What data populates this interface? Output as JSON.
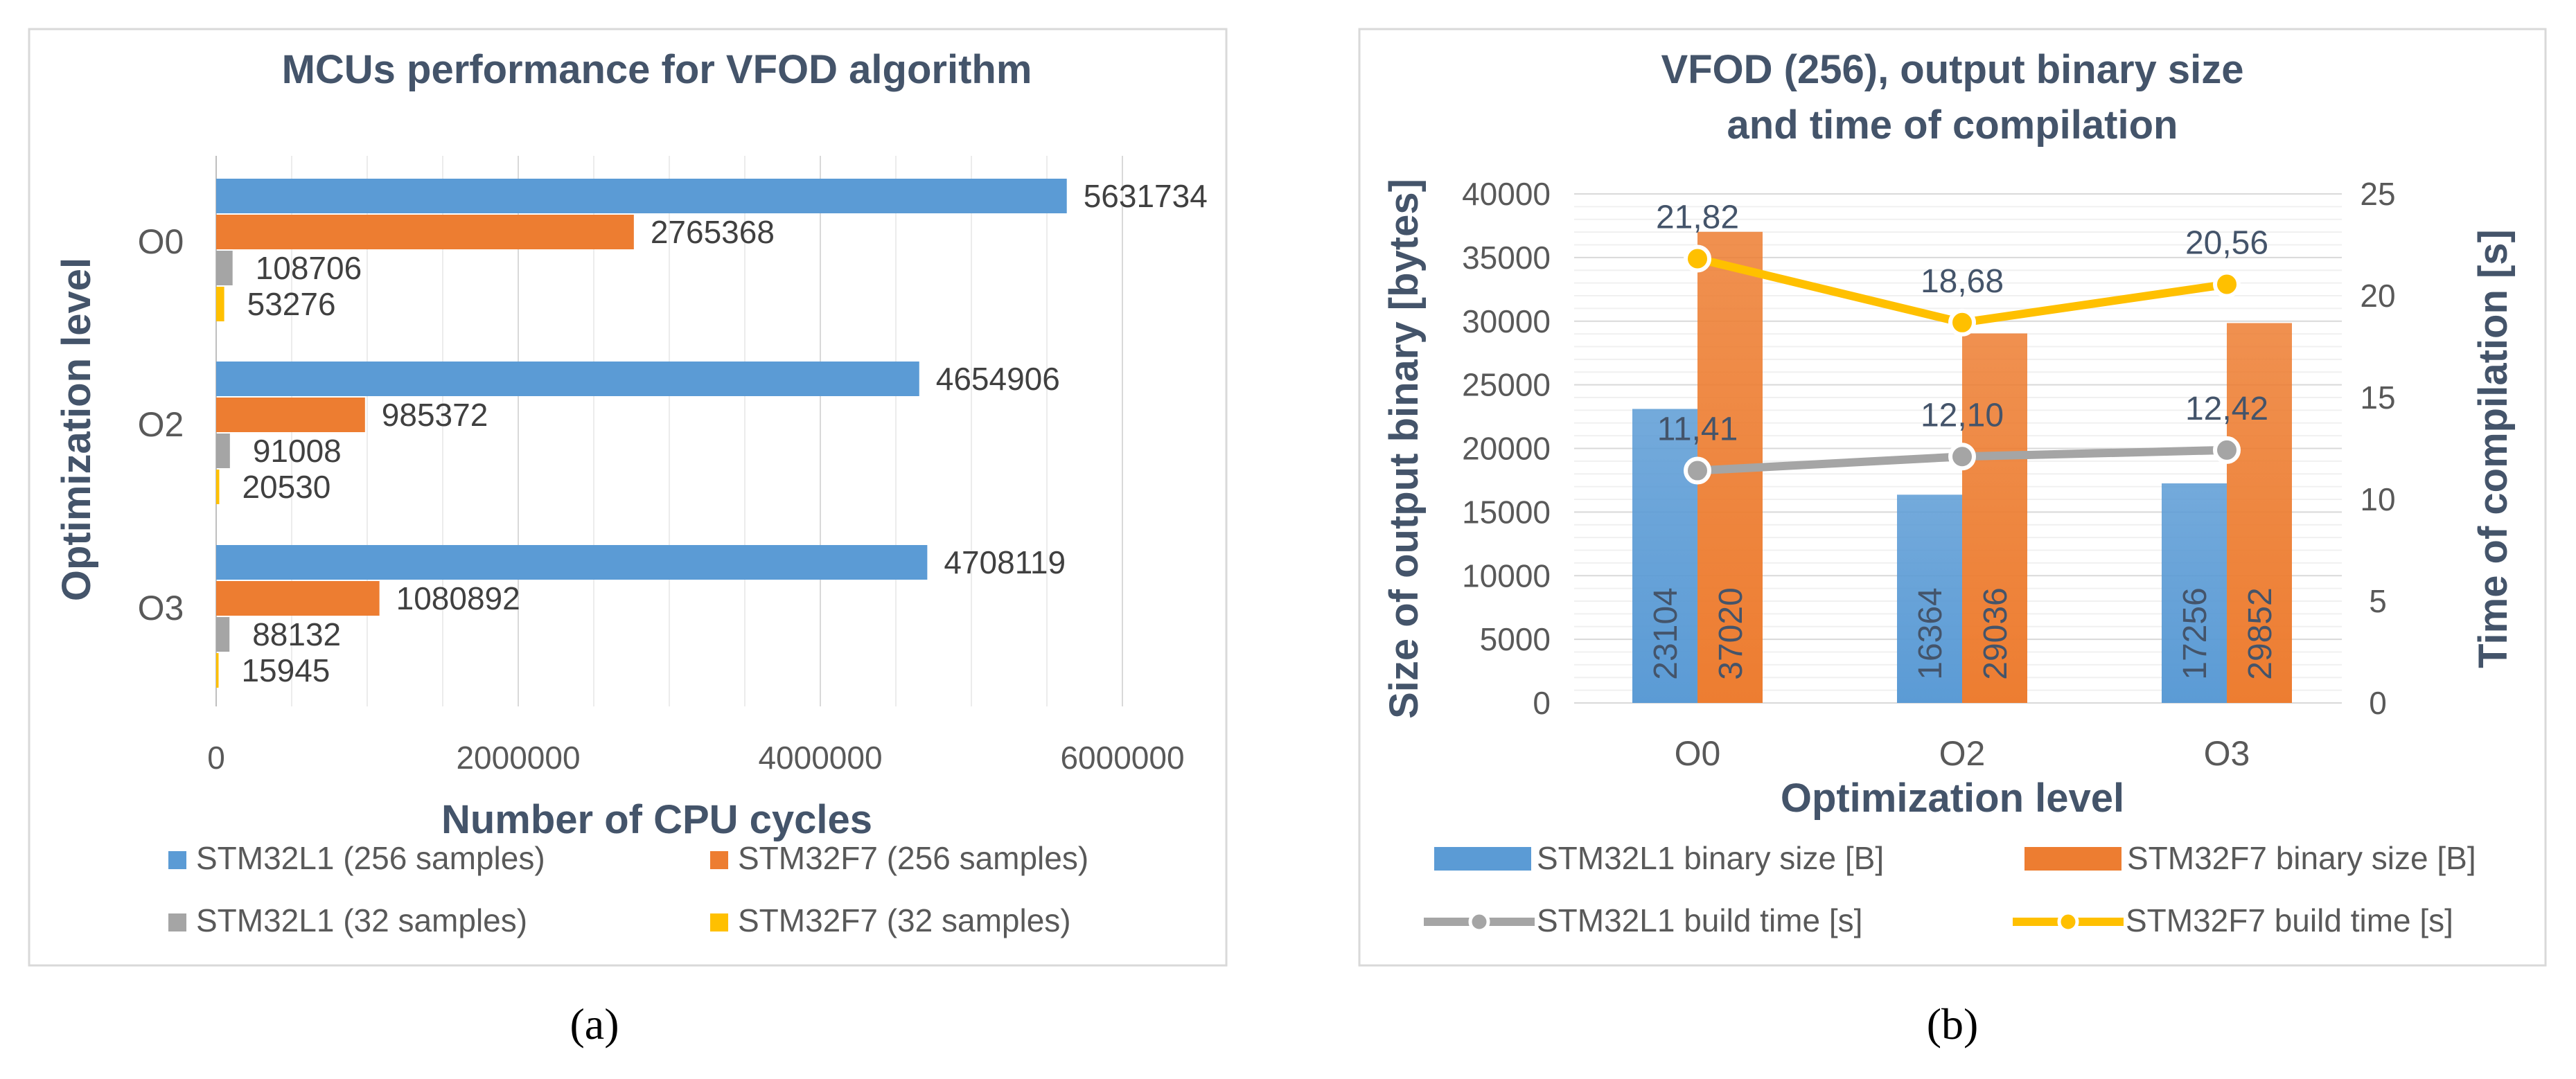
{
  "chart_data": [
    {
      "type": "bar",
      "orientation": "horizontal",
      "title": "MCUs performance for VFOD algorithm",
      "xlabel": "Number of CPU cycles",
      "ylabel": "Optimization level",
      "xlim": [
        0,
        6000000
      ],
      "x_ticks": [
        "0",
        "2000000",
        "4000000",
        "6000000"
      ],
      "categories": [
        "O0",
        "O2",
        "O3"
      ],
      "series": [
        {
          "name": "STM32L1 (256 samples)",
          "color": "#5b9bd5",
          "values": [
            5631734,
            4654906,
            4708119
          ]
        },
        {
          "name": "STM32F7 (256 samples)",
          "color": "#ed7d31",
          "values": [
            2765368,
            985372,
            1080892
          ]
        },
        {
          "name": "STM32L1 (32 samples)",
          "color": "#a5a5a5",
          "values": [
            108706,
            91008,
            88132
          ]
        },
        {
          "name": "STM32F7 (32 samples)",
          "color": "#ffc000",
          "values": [
            53276,
            20530,
            15945
          ]
        }
      ],
      "caption": "(a)"
    },
    {
      "type": "bar",
      "title": "VFOD (256), output binary size and time of compilation",
      "title_lines": [
        "VFOD (256), output binary size",
        "and time of compilation"
      ],
      "xlabel": "Optimization level",
      "ylabel": "Size of output binary  [bytes]",
      "y2label": "Time of compilation [s]",
      "ylim": [
        0,
        40000
      ],
      "y2lim": [
        0,
        25
      ],
      "y_ticks": [
        "0",
        "5000",
        "10000",
        "15000",
        "20000",
        "25000",
        "30000",
        "35000",
        "40000"
      ],
      "y2_ticks": [
        "0",
        "5",
        "10",
        "15",
        "20",
        "25"
      ],
      "categories": [
        "O0",
        "O2",
        "O3"
      ],
      "series": [
        {
          "name": "STM32L1 binary size [B]",
          "type": "bar",
          "axis": "left",
          "color": "#5b9bd5",
          "values": [
            23104,
            16364,
            17256
          ],
          "labels": [
            "23104",
            "16364",
            "17256"
          ]
        },
        {
          "name": "STM32F7 binary size [B]",
          "type": "bar",
          "axis": "left",
          "color": "#ed7d31",
          "values": [
            37020,
            29036,
            29852
          ],
          "labels": [
            "37020",
            "29036",
            "29852"
          ]
        },
        {
          "name": "STM32L1 build time [s]",
          "type": "line",
          "axis": "right",
          "color": "#a5a5a5",
          "values": [
            11.41,
            12.1,
            12.42
          ],
          "labels": [
            "11,41",
            "12,10",
            "12,42"
          ]
        },
        {
          "name": "STM32F7 build time [s]",
          "type": "line",
          "axis": "right",
          "color": "#ffc000",
          "values": [
            21.82,
            18.68,
            20.56
          ],
          "labels": [
            "21,82",
            "18,68",
            "20,56"
          ]
        }
      ],
      "caption": "(b)"
    }
  ]
}
